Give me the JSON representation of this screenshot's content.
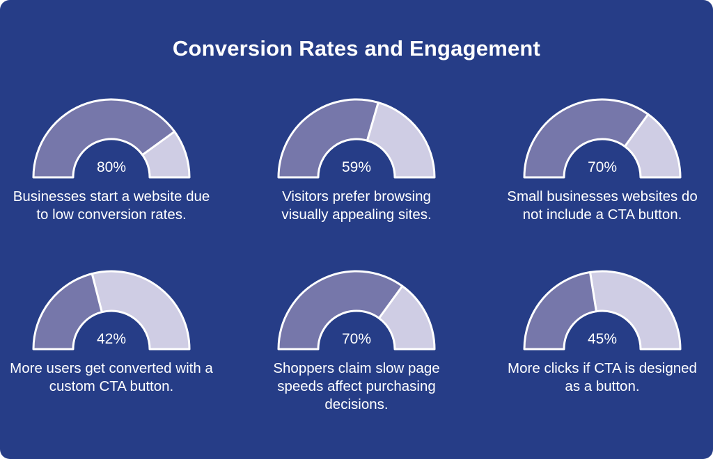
{
  "title": "Conversion Rates and Engagement",
  "colors": {
    "background": "#263d87",
    "filled": "#7677aa",
    "remaining": "#cfcde4",
    "outline": "#ffffff",
    "text": "#ffffff"
  },
  "chart_data": [
    {
      "type": "gauge",
      "value": 80,
      "max": 100,
      "value_label": "80%",
      "caption": "Businesses start a website due to low conversion rates."
    },
    {
      "type": "gauge",
      "value": 59,
      "max": 100,
      "value_label": "59%",
      "caption": "Visitors prefer browsing visually appealing sites."
    },
    {
      "type": "gauge",
      "value": 70,
      "max": 100,
      "value_label": "70%",
      "caption": "Small businesses websites do not include a CTA button."
    },
    {
      "type": "gauge",
      "value": 42,
      "max": 100,
      "value_label": "42%",
      "caption": "More users get converted with a custom CTA button."
    },
    {
      "type": "gauge",
      "value": 70,
      "max": 100,
      "value_label": "70%",
      "caption": "Shoppers claim slow page speeds affect purchasing decisions."
    },
    {
      "type": "gauge",
      "value": 45,
      "max": 100,
      "value_label": "45%",
      "caption": "More clicks if CTA is designed as a button."
    }
  ]
}
